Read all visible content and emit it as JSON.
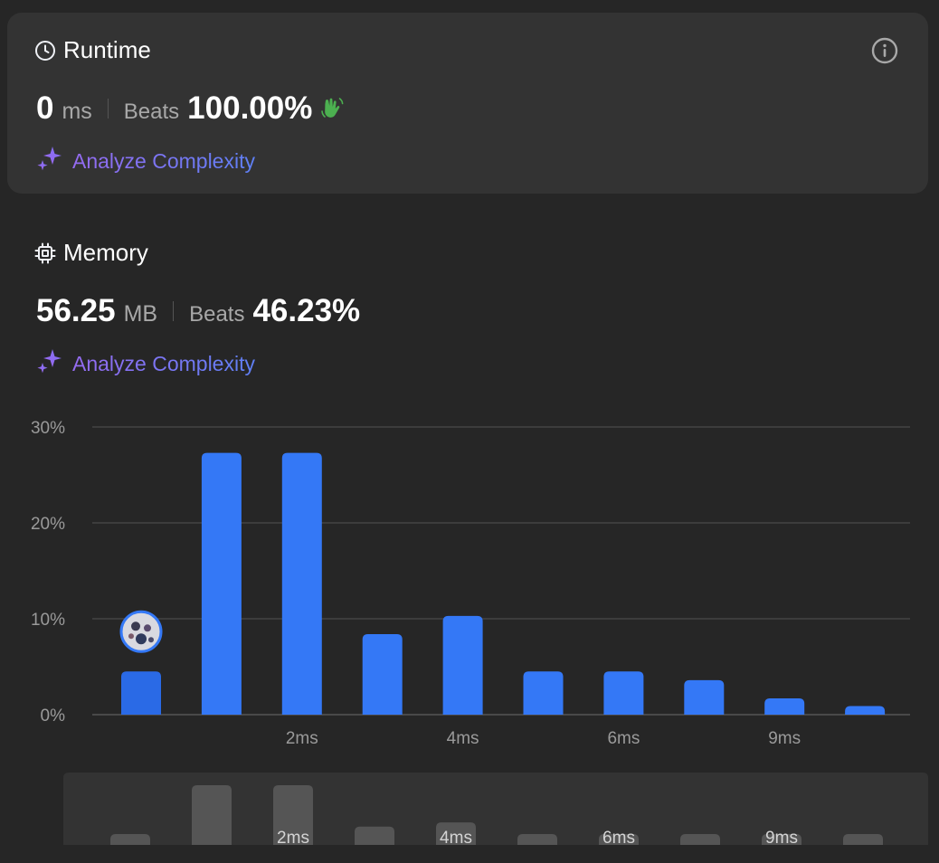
{
  "runtime": {
    "title": "Runtime",
    "value": "0",
    "unit": "ms",
    "beats_label": "Beats",
    "beats_value": "100.00%",
    "analyze_label": "Analyze Complexity"
  },
  "memory": {
    "title": "Memory",
    "value": "56.25",
    "unit": "MB",
    "beats_label": "Beats",
    "beats_value": "46.23%",
    "analyze_label": "Analyze Complexity"
  },
  "icons": {
    "runtime": "clock-icon",
    "memory": "chip-icon",
    "info": "info-icon",
    "analyze": "sparkle-icon",
    "beats_all": "waving-hands-icon",
    "my_submission": "avatar"
  },
  "colors": {
    "accent": "#3478f6",
    "selected_bar": "#2a6ae6",
    "beats_icon": "#4cb050",
    "analyze_gradient_start": "#a067f0",
    "analyze_gradient_end": "#5f80f5",
    "card_bg": "#333333",
    "page_bg": "#262626"
  },
  "chart_data": {
    "type": "bar",
    "ytick_labels": [
      "0%",
      "10%",
      "20%",
      "30%"
    ],
    "yticks": [
      0,
      10,
      20,
      30
    ],
    "ylim": [
      0,
      30
    ],
    "xtick_labels": [
      "2ms",
      "4ms",
      "6ms",
      "9ms"
    ],
    "xtick_bar_index": [
      2,
      4,
      6,
      8
    ],
    "values": [
      4.5,
      27.3,
      27.3,
      8.4,
      10.3,
      4.5,
      4.5,
      3.6,
      1.7,
      0.9
    ],
    "selected_index": 0,
    "grid": true,
    "legend": "none"
  },
  "overview": {
    "xtick_labels": [
      "2ms",
      "4ms",
      "6ms",
      "9ms"
    ]
  }
}
